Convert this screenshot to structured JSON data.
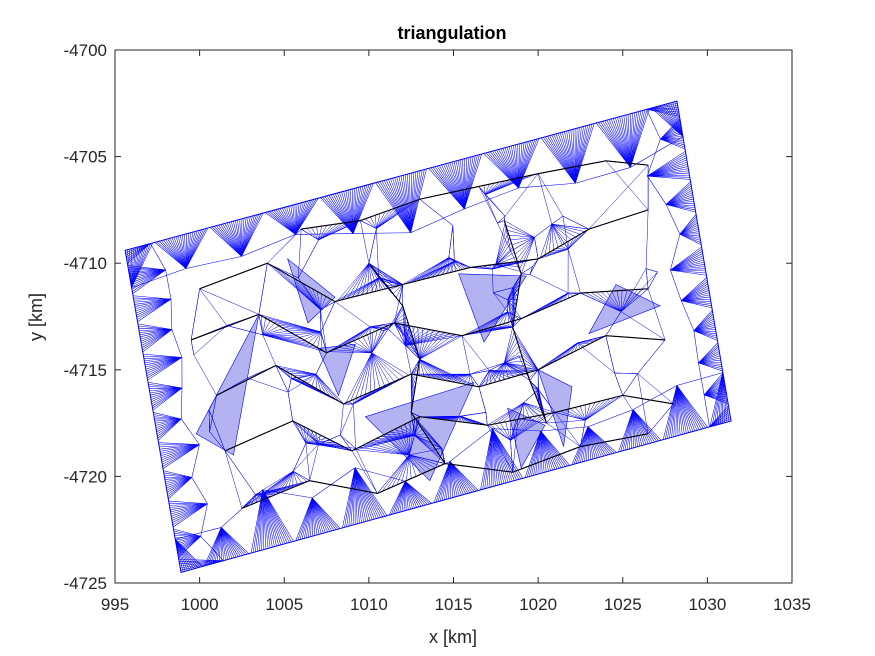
{
  "chart_data": {
    "type": "triangulation",
    "title": "triangulation",
    "xlabel": "x [km]",
    "ylabel": "y [km]",
    "xlim": [
      995,
      1035
    ],
    "ylim": [
      -4725,
      -4700
    ],
    "xticks": [
      "995",
      "1000",
      "1005",
      "1010",
      "1015",
      "1020",
      "1025",
      "1030",
      "1035"
    ],
    "yticks": [
      "-4700",
      "-4705",
      "-4710",
      "-4715",
      "-4720",
      "-4725"
    ],
    "grid": false,
    "colors": {
      "edge": "#0000ff",
      "fill": "#b3b3f2",
      "boundary": "#000000"
    },
    "domain_corners": [
      [
        995.6,
        -4709.4
      ],
      [
        1028.2,
        -4702.4
      ],
      [
        1031.4,
        -4717.4
      ],
      [
        998.9,
        -4724.5
      ]
    ],
    "breaklines": [
      [
        [
          1000.0,
          -4711.2
        ],
        [
          1004.0,
          -4710.0
        ],
        [
          1008.0,
          -4711.8
        ],
        [
          1012.0,
          -4711.0
        ],
        [
          1016.0,
          -4710.2
        ],
        [
          1020.0,
          -4709.8
        ],
        [
          1023.0,
          -4708.4
        ],
        [
          1026.5,
          -4707.5
        ]
      ],
      [
        [
          999.5,
          -4713.6
        ],
        [
          1003.5,
          -4712.4
        ],
        [
          1007.5,
          -4714.2
        ],
        [
          1011.5,
          -4712.8
        ],
        [
          1015.5,
          -4713.4
        ],
        [
          1019.0,
          -4712.6
        ],
        [
          1022.5,
          -4711.4
        ],
        [
          1026.5,
          -4711.2
        ]
      ],
      [
        [
          1001.0,
          -4716.2
        ],
        [
          1004.5,
          -4714.8
        ],
        [
          1008.5,
          -4716.6
        ],
        [
          1012.5,
          -4715.2
        ],
        [
          1016.5,
          -4715.8
        ],
        [
          1020.0,
          -4715.0
        ],
        [
          1024.0,
          -4713.4
        ],
        [
          1027.5,
          -4713.6
        ]
      ],
      [
        [
          1001.5,
          -4718.8
        ],
        [
          1005.5,
          -4717.4
        ],
        [
          1009.0,
          -4718.8
        ],
        [
          1013.0,
          -4717.2
        ],
        [
          1017.0,
          -4717.6
        ],
        [
          1021.0,
          -4717.0
        ],
        [
          1025.0,
          -4716.2
        ],
        [
          1028.0,
          -4716.6
        ]
      ],
      [
        [
          1002.5,
          -4721.5
        ],
        [
          1006.5,
          -4720.2
        ],
        [
          1010.5,
          -4720.8
        ],
        [
          1014.5,
          -4719.4
        ],
        [
          1018.5,
          -4719.8
        ],
        [
          1022.5,
          -4718.6
        ],
        [
          1026.5,
          -4718.0
        ]
      ],
      [
        [
          1006.0,
          -4708.4
        ],
        [
          1009.5,
          -4708.0
        ],
        [
          1013.0,
          -4707.0
        ],
        [
          1016.5,
          -4706.4
        ],
        [
          1020.0,
          -4705.8
        ],
        [
          1024.0,
          -4705.2
        ],
        [
          1026.5,
          -4705.4
        ]
      ],
      [
        [
          1010.0,
          -4710.0
        ],
        [
          1012.0,
          -4712.0
        ],
        [
          1013.0,
          -4714.5
        ],
        [
          1012.5,
          -4717.0
        ],
        [
          1014.5,
          -4719.4
        ]
      ],
      [
        [
          1018.0,
          -4708.0
        ],
        [
          1019.0,
          -4710.5
        ],
        [
          1018.5,
          -4713.0
        ],
        [
          1019.5,
          -4715.5
        ],
        [
          1020.5,
          -4717.5
        ]
      ]
    ],
    "shaded_regions": [
      [
        [
          1003.5,
          -4712.4
        ],
        [
          999.8,
          -4718.0
        ],
        [
          1002.0,
          -4719.0
        ]
      ],
      [
        [
          1015.3,
          -4710.5
        ],
        [
          1019.3,
          -4710.6
        ],
        [
          1016.8,
          -4713.7
        ]
      ],
      [
        [
          1024.6,
          -4711.0
        ],
        [
          1027.2,
          -4712.0
        ],
        [
          1023.0,
          -4713.3
        ]
      ],
      [
        [
          1009.8,
          -4717.2
        ],
        [
          1016.2,
          -4715.6
        ],
        [
          1013.6,
          -4720.2
        ]
      ],
      [
        [
          1020.0,
          -4715.0
        ],
        [
          1022.0,
          -4715.8
        ],
        [
          1021.5,
          -4718.6
        ]
      ],
      [
        [
          1007.0,
          -4714.0
        ],
        [
          1009.2,
          -4713.8
        ],
        [
          1008.2,
          -4716.2
        ]
      ],
      [
        [
          1005.2,
          -4709.8
        ],
        [
          1008.0,
          -4711.6
        ],
        [
          1006.4,
          -4712.8
        ]
      ],
      [
        [
          1018.2,
          -4716.8
        ],
        [
          1020.4,
          -4717.6
        ],
        [
          1019.0,
          -4719.6
        ]
      ]
    ]
  }
}
